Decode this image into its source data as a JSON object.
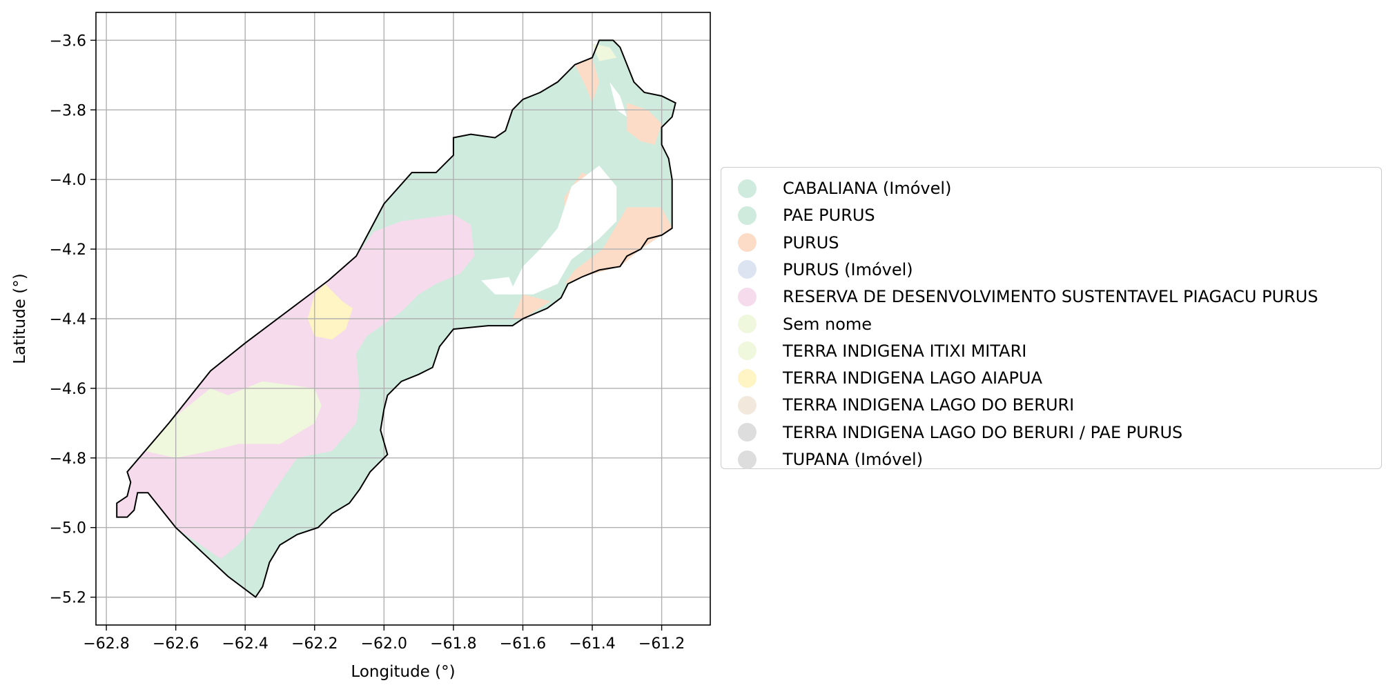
{
  "map": {
    "xlabel": "Longitude (°)",
    "ylabel": "Latitude (°)",
    "xlim": [
      -62.83,
      -61.06
    ],
    "ylim": [
      -5.28,
      -3.52
    ],
    "x_ticks": [
      -62.8,
      -62.6,
      -62.4,
      -62.2,
      -62.0,
      -61.8,
      -61.6,
      -61.4,
      -61.2
    ],
    "y_ticks": [
      -3.6,
      -3.8,
      -4.0,
      -4.2,
      -4.4,
      -4.6,
      -4.8,
      -5.0,
      -5.2
    ],
    "x_tick_labels": [
      "−62.8",
      "−62.6",
      "−62.4",
      "−62.2",
      "−62.0",
      "−61.8",
      "−61.6",
      "−61.4",
      "−61.2"
    ],
    "y_tick_labels": [
      "−3.6",
      "−3.8",
      "−4.0",
      "−4.2",
      "−4.4",
      "−4.6",
      "−4.8",
      "−5.0",
      "−5.2"
    ],
    "grid": true,
    "legend_placement": "center-left outside the map",
    "boundary_color": "#000000",
    "boundary": [
      [
        -61.34,
        -3.6
      ],
      [
        -61.32,
        -3.62
      ],
      [
        -61.28,
        -3.72
      ],
      [
        -61.25,
        -3.75
      ],
      [
        -61.2,
        -3.76
      ],
      [
        -61.16,
        -3.78
      ],
      [
        -61.17,
        -3.82
      ],
      [
        -61.2,
        -3.85
      ],
      [
        -61.2,
        -3.9
      ],
      [
        -61.18,
        -3.94
      ],
      [
        -61.17,
        -4.0
      ],
      [
        -61.17,
        -4.14
      ],
      [
        -61.2,
        -4.16
      ],
      [
        -61.24,
        -4.17
      ],
      [
        -61.26,
        -4.2
      ],
      [
        -61.3,
        -4.22
      ],
      [
        -61.32,
        -4.25
      ],
      [
        -61.38,
        -4.26
      ],
      [
        -61.43,
        -4.28
      ],
      [
        -61.47,
        -4.3
      ],
      [
        -61.49,
        -4.34
      ],
      [
        -61.53,
        -4.37
      ],
      [
        -61.6,
        -4.4
      ],
      [
        -61.63,
        -4.42
      ],
      [
        -61.7,
        -4.42
      ],
      [
        -61.8,
        -4.43
      ],
      [
        -61.84,
        -4.48
      ],
      [
        -61.86,
        -4.54
      ],
      [
        -61.9,
        -4.56
      ],
      [
        -61.95,
        -4.58
      ],
      [
        -61.99,
        -4.62
      ],
      [
        -62.0,
        -4.66
      ],
      [
        -62.01,
        -4.72
      ],
      [
        -61.99,
        -4.79
      ],
      [
        -62.0,
        -4.8
      ],
      [
        -62.04,
        -4.84
      ],
      [
        -62.07,
        -4.89
      ],
      [
        -62.1,
        -4.93
      ],
      [
        -62.15,
        -4.96
      ],
      [
        -62.19,
        -5.0
      ],
      [
        -62.25,
        -5.02
      ],
      [
        -62.3,
        -5.05
      ],
      [
        -62.33,
        -5.1
      ],
      [
        -62.35,
        -5.17
      ],
      [
        -62.37,
        -5.2
      ],
      [
        -62.45,
        -5.14
      ],
      [
        -62.6,
        -5.0
      ],
      [
        -62.68,
        -4.9
      ],
      [
        -62.71,
        -4.9
      ],
      [
        -62.72,
        -4.95
      ],
      [
        -62.74,
        -4.97
      ],
      [
        -62.77,
        -4.97
      ],
      [
        -62.77,
        -4.93
      ],
      [
        -62.74,
        -4.91
      ],
      [
        -62.73,
        -4.87
      ],
      [
        -62.74,
        -4.84
      ],
      [
        -62.62,
        -4.7
      ],
      [
        -62.5,
        -4.55
      ],
      [
        -62.4,
        -4.47
      ],
      [
        -62.16,
        -4.29
      ],
      [
        -62.08,
        -4.22
      ],
      [
        -62.0,
        -4.07
      ],
      [
        -61.92,
        -3.98
      ],
      [
        -61.85,
        -3.98
      ],
      [
        -61.8,
        -3.93
      ],
      [
        -61.8,
        -3.88
      ],
      [
        -61.75,
        -3.87
      ],
      [
        -61.68,
        -3.88
      ],
      [
        -61.65,
        -3.86
      ],
      [
        -61.63,
        -3.8
      ],
      [
        -61.6,
        -3.77
      ],
      [
        -61.55,
        -3.75
      ],
      [
        -61.5,
        -3.72
      ],
      [
        -61.45,
        -3.67
      ],
      [
        -61.4,
        -3.65
      ],
      [
        -61.38,
        -3.6
      ]
    ],
    "regions": [
      {
        "key": "pae_purus",
        "color": "#cfebdd",
        "polygon": [
          [
            -61.34,
            -3.6
          ],
          [
            -61.32,
            -3.62
          ],
          [
            -61.28,
            -3.72
          ],
          [
            -61.25,
            -3.75
          ],
          [
            -61.2,
            -3.76
          ],
          [
            -61.16,
            -3.78
          ],
          [
            -61.17,
            -3.82
          ],
          [
            -61.2,
            -3.85
          ],
          [
            -61.2,
            -3.9
          ],
          [
            -61.18,
            -3.94
          ],
          [
            -61.17,
            -4.0
          ],
          [
            -61.17,
            -4.14
          ],
          [
            -61.2,
            -4.16
          ],
          [
            -61.24,
            -4.17
          ],
          [
            -61.26,
            -4.2
          ],
          [
            -61.3,
            -4.22
          ],
          [
            -61.32,
            -4.25
          ],
          [
            -61.38,
            -4.26
          ],
          [
            -61.43,
            -4.28
          ],
          [
            -61.47,
            -4.3
          ],
          [
            -61.49,
            -4.34
          ],
          [
            -61.53,
            -4.37
          ],
          [
            -61.6,
            -4.4
          ],
          [
            -61.63,
            -4.42
          ],
          [
            -61.7,
            -4.42
          ],
          [
            -61.8,
            -4.43
          ],
          [
            -61.84,
            -4.48
          ],
          [
            -61.86,
            -4.54
          ],
          [
            -61.9,
            -4.56
          ],
          [
            -61.95,
            -4.58
          ],
          [
            -61.99,
            -4.62
          ],
          [
            -62.0,
            -4.66
          ],
          [
            -62.01,
            -4.72
          ],
          [
            -61.99,
            -4.79
          ],
          [
            -62.0,
            -4.8
          ],
          [
            -62.04,
            -4.84
          ],
          [
            -62.07,
            -4.89
          ],
          [
            -62.1,
            -4.93
          ],
          [
            -62.15,
            -4.96
          ],
          [
            -62.19,
            -5.0
          ],
          [
            -62.25,
            -5.02
          ],
          [
            -62.3,
            -5.05
          ],
          [
            -62.33,
            -5.1
          ],
          [
            -62.35,
            -5.17
          ],
          [
            -62.37,
            -5.2
          ],
          [
            -62.45,
            -5.14
          ],
          [
            -62.6,
            -5.0
          ],
          [
            -62.68,
            -4.9
          ],
          [
            -62.71,
            -4.9
          ],
          [
            -62.72,
            -4.95
          ],
          [
            -62.74,
            -4.97
          ],
          [
            -62.77,
            -4.97
          ],
          [
            -62.77,
            -4.93
          ],
          [
            -62.74,
            -4.91
          ],
          [
            -62.73,
            -4.87
          ],
          [
            -62.74,
            -4.84
          ],
          [
            -62.62,
            -4.7
          ],
          [
            -62.5,
            -4.55
          ],
          [
            -62.4,
            -4.47
          ],
          [
            -62.16,
            -4.29
          ],
          [
            -62.08,
            -4.22
          ],
          [
            -62.0,
            -4.07
          ],
          [
            -61.92,
            -3.98
          ],
          [
            -61.85,
            -3.98
          ],
          [
            -61.8,
            -3.93
          ],
          [
            -61.8,
            -3.88
          ],
          [
            -61.75,
            -3.87
          ],
          [
            -61.68,
            -3.88
          ],
          [
            -61.65,
            -3.86
          ],
          [
            -61.63,
            -3.8
          ],
          [
            -61.6,
            -3.77
          ],
          [
            -61.55,
            -3.75
          ],
          [
            -61.5,
            -3.72
          ],
          [
            -61.45,
            -3.67
          ],
          [
            -61.4,
            -3.65
          ],
          [
            -61.38,
            -3.6
          ]
        ]
      },
      {
        "key": "reserva_piagacu",
        "color": "#f5dbeb",
        "polygon": [
          [
            -62.74,
            -4.84
          ],
          [
            -62.62,
            -4.7
          ],
          [
            -62.5,
            -4.55
          ],
          [
            -62.4,
            -4.47
          ],
          [
            -62.16,
            -4.29
          ],
          [
            -62.08,
            -4.22
          ],
          [
            -62.03,
            -4.15
          ],
          [
            -61.95,
            -4.12
          ],
          [
            -61.8,
            -4.1
          ],
          [
            -61.75,
            -4.13
          ],
          [
            -61.74,
            -4.22
          ],
          [
            -61.78,
            -4.27
          ],
          [
            -61.85,
            -4.3
          ],
          [
            -61.9,
            -4.33
          ],
          [
            -61.95,
            -4.38
          ],
          [
            -62.05,
            -4.45
          ],
          [
            -62.08,
            -4.5
          ],
          [
            -62.07,
            -4.62
          ],
          [
            -62.08,
            -4.7
          ],
          [
            -62.15,
            -4.78
          ],
          [
            -62.25,
            -4.8
          ],
          [
            -62.32,
            -4.9
          ],
          [
            -62.38,
            -5.0
          ],
          [
            -62.42,
            -5.05
          ],
          [
            -62.47,
            -5.09
          ],
          [
            -62.6,
            -5.0
          ],
          [
            -62.68,
            -4.9
          ],
          [
            -62.71,
            -4.9
          ],
          [
            -62.72,
            -4.95
          ],
          [
            -62.74,
            -4.97
          ],
          [
            -62.77,
            -4.97
          ],
          [
            -62.77,
            -4.93
          ],
          [
            -62.74,
            -4.91
          ],
          [
            -62.73,
            -4.87
          ]
        ]
      },
      {
        "key": "sem_nome",
        "color": "#eff7dc",
        "polygon": [
          [
            -62.69,
            -4.78
          ],
          [
            -62.6,
            -4.68
          ],
          [
            -62.5,
            -4.6
          ],
          [
            -62.45,
            -4.62
          ],
          [
            -62.35,
            -4.58
          ],
          [
            -62.2,
            -4.6
          ],
          [
            -62.18,
            -4.65
          ],
          [
            -62.2,
            -4.7
          ],
          [
            -62.3,
            -4.76
          ],
          [
            -62.42,
            -4.76
          ],
          [
            -62.5,
            -4.78
          ],
          [
            -62.6,
            -4.8
          ]
        ]
      },
      {
        "key": "terra_lago_aiapua",
        "color": "#fff4c4",
        "polygon": [
          [
            -62.2,
            -4.33
          ],
          [
            -62.17,
            -4.3
          ],
          [
            -62.12,
            -4.35
          ],
          [
            -62.09,
            -4.37
          ],
          [
            -62.11,
            -4.43
          ],
          [
            -62.15,
            -4.46
          ],
          [
            -62.2,
            -4.45
          ],
          [
            -62.22,
            -4.4
          ]
        ]
      },
      {
        "key": "purus_north",
        "color": "#fcdcc6",
        "polygon": [
          [
            -61.45,
            -3.67
          ],
          [
            -61.4,
            -3.65
          ],
          [
            -61.38,
            -3.72
          ],
          [
            -61.4,
            -3.78
          ],
          [
            -61.42,
            -3.73
          ]
        ]
      },
      {
        "key": "purus_ne",
        "color": "#fcdcc6",
        "polygon": [
          [
            -61.3,
            -3.78
          ],
          [
            -61.24,
            -3.8
          ],
          [
            -61.2,
            -3.84
          ],
          [
            -61.22,
            -3.9
          ],
          [
            -61.26,
            -3.89
          ],
          [
            -61.3,
            -3.86
          ]
        ]
      },
      {
        "key": "purus_center",
        "color": "#fcdcc6",
        "polygon": [
          [
            -61.43,
            -3.98
          ],
          [
            -61.38,
            -4.0
          ],
          [
            -61.4,
            -4.08
          ],
          [
            -61.43,
            -4.13
          ],
          [
            -61.48,
            -4.13
          ],
          [
            -61.48,
            -4.05
          ]
        ]
      },
      {
        "key": "purus_east",
        "color": "#fcdcc6",
        "polygon": [
          [
            -61.3,
            -4.08
          ],
          [
            -61.2,
            -4.08
          ],
          [
            -61.17,
            -4.14
          ],
          [
            -61.2,
            -4.16
          ],
          [
            -61.26,
            -4.2
          ],
          [
            -61.32,
            -4.25
          ],
          [
            -61.43,
            -4.28
          ],
          [
            -61.48,
            -4.3
          ],
          [
            -61.45,
            -4.26
          ],
          [
            -61.37,
            -4.2
          ]
        ]
      },
      {
        "key": "purus_south",
        "color": "#fcdcc6",
        "polygon": [
          [
            -61.6,
            -4.33
          ],
          [
            -61.52,
            -4.35
          ],
          [
            -61.6,
            -4.4
          ],
          [
            -61.63,
            -4.4
          ]
        ]
      },
      {
        "key": "terra_itixi_north",
        "color": "#eff7dc",
        "polygon": [
          [
            -61.4,
            -3.61
          ],
          [
            -61.35,
            -3.62
          ],
          [
            -61.33,
            -3.65
          ],
          [
            -61.38,
            -3.66
          ]
        ]
      },
      {
        "key": "white_channel",
        "color": "#ffffff",
        "polygon": [
          [
            -61.38,
            -3.96
          ],
          [
            -61.46,
            -4.02
          ],
          [
            -61.5,
            -4.14
          ],
          [
            -61.55,
            -4.2
          ],
          [
            -61.6,
            -4.25
          ],
          [
            -61.64,
            -4.33
          ],
          [
            -61.57,
            -4.33
          ],
          [
            -61.5,
            -4.3
          ],
          [
            -61.46,
            -4.23
          ],
          [
            -61.38,
            -4.17
          ],
          [
            -61.33,
            -4.12
          ],
          [
            -61.33,
            -4.02
          ]
        ]
      },
      {
        "key": "white_inlet",
        "color": "#ffffff",
        "polygon": [
          [
            -61.72,
            -4.29
          ],
          [
            -61.64,
            -4.28
          ],
          [
            -61.62,
            -4.33
          ],
          [
            -61.68,
            -4.33
          ]
        ]
      },
      {
        "key": "white_ne",
        "color": "#ffffff",
        "polygon": [
          [
            -61.35,
            -3.72
          ],
          [
            -61.33,
            -3.8
          ],
          [
            -61.3,
            -3.82
          ],
          [
            -61.32,
            -3.76
          ]
        ]
      }
    ]
  },
  "legend": {
    "items": [
      {
        "label": "CABALIANA (Imóvel)",
        "color": "#cfebdd"
      },
      {
        "label": "PAE PURUS",
        "color": "#cfebdd"
      },
      {
        "label": "PURUS",
        "color": "#fcdcc6"
      },
      {
        "label": "PURUS (Imóvel)",
        "color": "#dde4f1"
      },
      {
        "label": "RESERVA DE DESENVOLVIMENTO SUSTENTAVEL PIAGACU PURUS",
        "color": "#f5dbeb"
      },
      {
        "label": "Sem nome",
        "color": "#eff7dc"
      },
      {
        "label": "TERRA INDIGENA ITIXI MITARI",
        "color": "#eff7dc"
      },
      {
        "label": "TERRA INDIGENA LAGO AIAPUA",
        "color": "#fff4c4"
      },
      {
        "label": "TERRA INDIGENA LAGO DO BERURI",
        "color": "#f2e9dc"
      },
      {
        "label": "TERRA INDIGENA LAGO DO BERURI / PAE PURUS",
        "color": "#dddddd"
      },
      {
        "label": "TUPANA (Imóvel)",
        "color": "#dddddd"
      }
    ]
  }
}
